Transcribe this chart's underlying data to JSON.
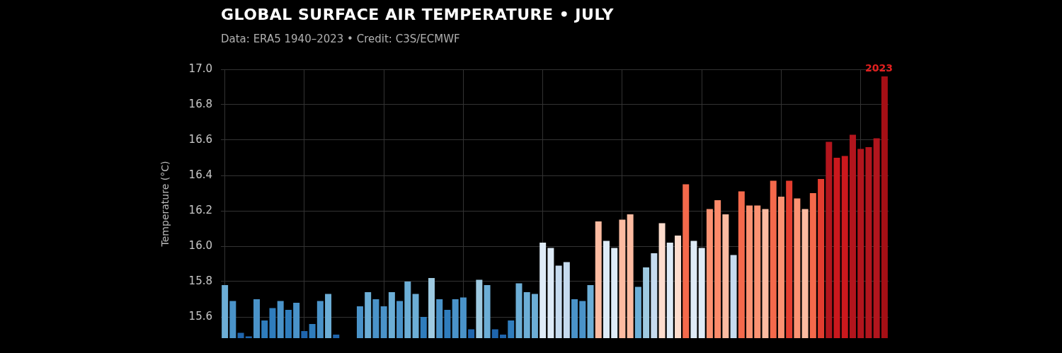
{
  "chart_data": {
    "type": "bar",
    "title": "GLOBAL SURFACE AIR TEMPERATURE • JULY",
    "subtitle": "Data: ERA5 1940–2023 • Credit: C3S/ECMWF",
    "ylabel": "Temperature (°C)",
    "categories": [
      null,
      null,
      null,
      null,
      null,
      null,
      null,
      null,
      null,
      null,
      null,
      null,
      null,
      null,
      null,
      null,
      null,
      null,
      null,
      null,
      null,
      null,
      null,
      null,
      null,
      null,
      null,
      null,
      null,
      null,
      null,
      null,
      null,
      null,
      null,
      null,
      null,
      null,
      null,
      null,
      null,
      null,
      null,
      null,
      null,
      null,
      null,
      null,
      null,
      null,
      null,
      null,
      null,
      null,
      null,
      null,
      null,
      null,
      null,
      null,
      null,
      null,
      null,
      null,
      null,
      null,
      null,
      null,
      null,
      null,
      null,
      null,
      null,
      null,
      null,
      null,
      null,
      null,
      null,
      null,
      null,
      null,
      null,
      null
    ],
    "values": [
      15.78,
      15.69,
      15.51,
      15.49,
      15.7,
      15.58,
      15.65,
      15.69,
      15.64,
      15.68,
      15.52,
      15.56,
      15.69,
      15.73,
      15.5,
      null,
      null,
      15.66,
      15.74,
      15.7,
      15.66,
      15.74,
      15.69,
      15.8,
      15.73,
      15.6,
      15.82,
      15.7,
      15.64,
      15.7,
      15.71,
      15.53,
      15.81,
      15.78,
      15.53,
      15.5,
      15.58,
      15.79,
      15.74,
      15.73,
      16.02,
      15.99,
      15.89,
      15.91,
      15.7,
      15.69,
      15.78,
      16.14,
      16.03,
      15.99,
      16.15,
      16.18,
      15.77,
      15.88,
      15.96,
      16.13,
      16.02,
      16.06,
      16.35,
      16.03,
      15.99,
      16.21,
      16.26,
      16.18,
      15.95,
      16.31,
      16.23,
      16.23,
      16.21,
      16.37,
      16.28,
      16.37,
      16.27,
      16.21,
      16.3,
      16.38,
      16.59,
      16.5,
      16.51,
      16.63,
      16.55,
      16.56,
      16.61,
      16.96
    ],
    "colors": [
      "#6caed6",
      "#4a93c9",
      "#1f65ad",
      "#1f65ad",
      "#4a93c9",
      "#2f7dbd",
      "#2f7dbd",
      "#4a93c9",
      "#2f7dbd",
      "#4a93c9",
      "#1f65ad",
      "#2f7dbd",
      "#4a93c9",
      "#6caed6",
      "#1f65ad",
      "#1f65ad",
      "#1f65ad",
      "#4a93c9",
      "#6caed6",
      "#4a93c9",
      "#4a93c9",
      "#6caed6",
      "#4a93c9",
      "#6caed6",
      "#6caed6",
      "#2f7dbd",
      "#9ecae1",
      "#4a93c9",
      "#2f7dbd",
      "#4a93c9",
      "#4a93c9",
      "#1f65ad",
      "#9ecae1",
      "#6caed6",
      "#1f65ad",
      "#1f65ad",
      "#2f7dbd",
      "#6caed6",
      "#6caed6",
      "#6caed6",
      "#deebf7",
      "#deebf7",
      "#c6dbef",
      "#c6dbef",
      "#4a93c9",
      "#4a93c9",
      "#6caed6",
      "#fcbba1",
      "#deebf7",
      "#deebf7",
      "#fcbba1",
      "#fcbba1",
      "#6caed6",
      "#9ecae1",
      "#c6dbef",
      "#fddccd",
      "#deebf7",
      "#fddccd",
      "#f4694b",
      "#deebf7",
      "#deebf7",
      "#fc9272",
      "#fc8a6a",
      "#fcbba1",
      "#c6dbef",
      "#f4694b",
      "#fc9272",
      "#fc9272",
      "#fcbba1",
      "#f4694b",
      "#fc9272",
      "#e33d2f",
      "#fc9272",
      "#fcbba1",
      "#f4694b",
      "#e33d2f",
      "#b2151d",
      "#cb181d",
      "#cb181d",
      "#b2151d",
      "#b2151d",
      "#b2151d",
      "#b2151d",
      "#a50f15"
    ],
    "ylim": [
      15.48,
      17.0
    ],
    "yticks": [
      {
        "value": 15.6,
        "label": "15.6"
      },
      {
        "value": 15.8,
        "label": "15.8"
      },
      {
        "value": 16.0,
        "label": "16.0"
      },
      {
        "value": 16.2,
        "label": "16.2"
      },
      {
        "value": 16.4,
        "label": "16.4"
      },
      {
        "value": 16.6,
        "label": "16.6"
      },
      {
        "value": 16.8,
        "label": "16.8"
      },
      {
        "value": 17.0,
        "label": "17.0"
      }
    ],
    "grid": true,
    "tick_labels": "y",
    "annotations": [
      {
        "text": "2023",
        "y": 16.96
      }
    ]
  }
}
